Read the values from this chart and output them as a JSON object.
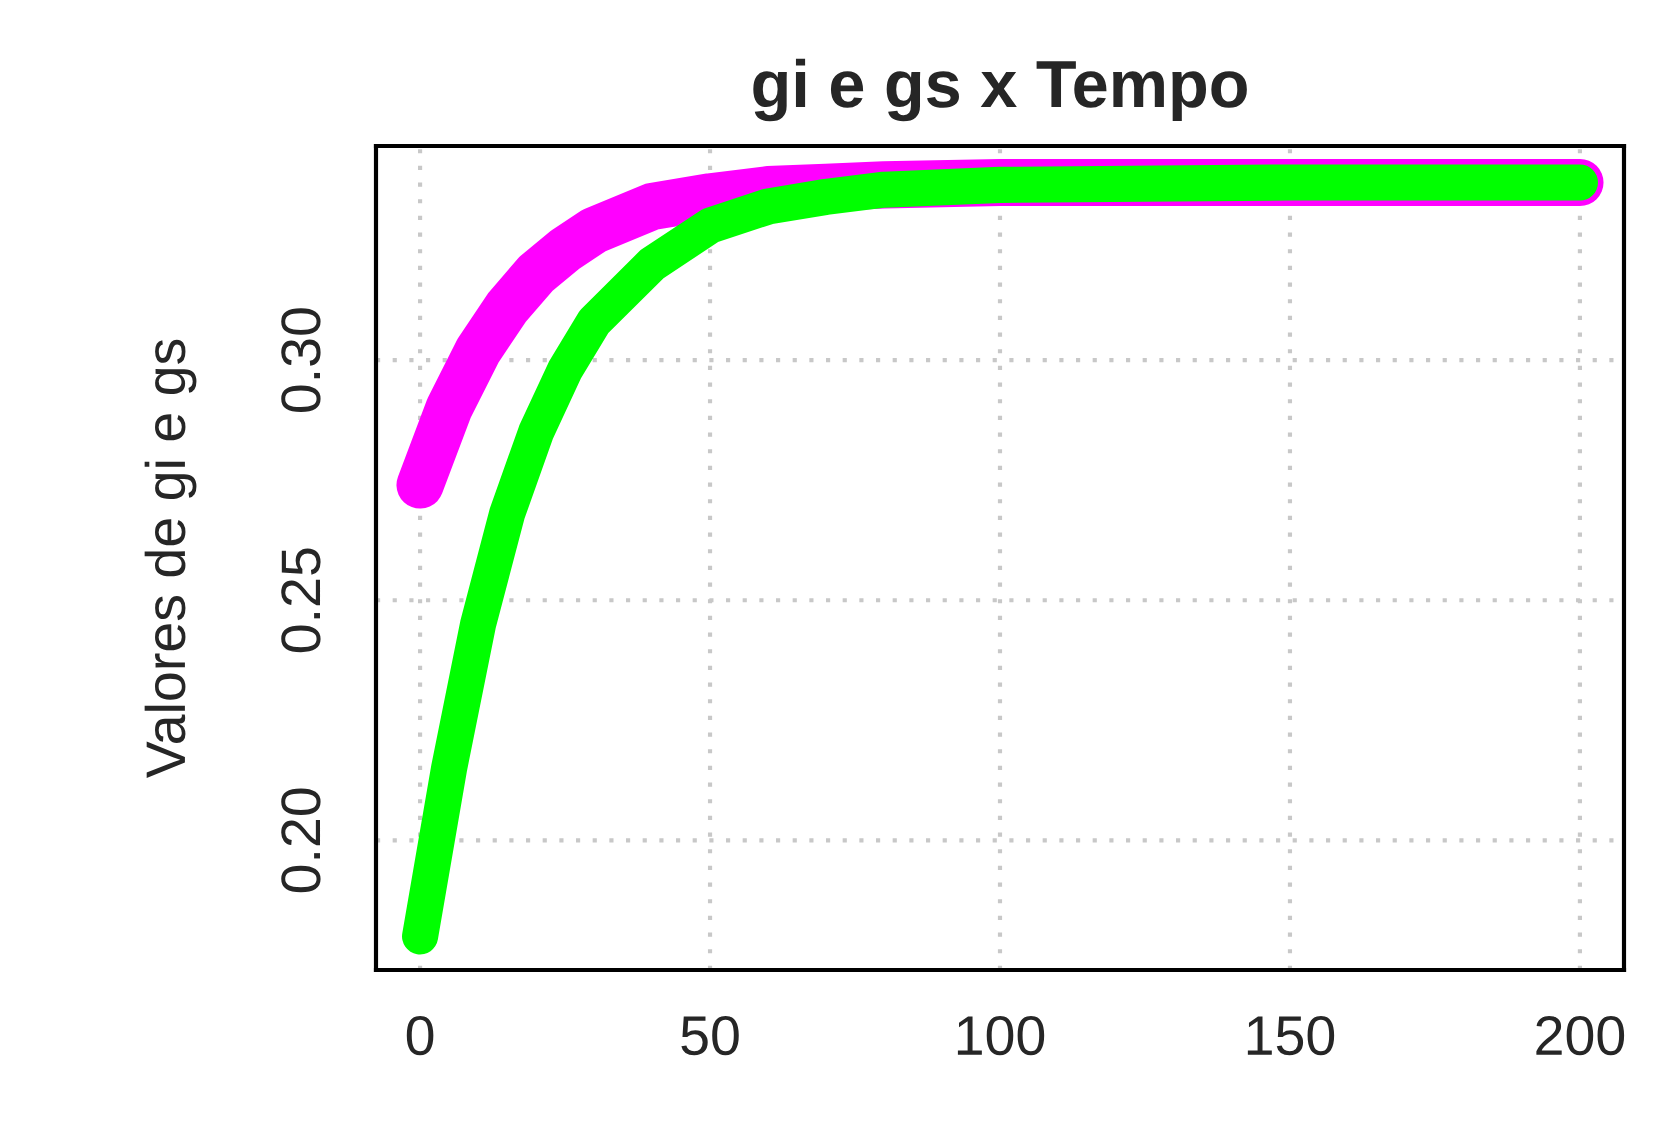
{
  "chart_data": {
    "type": "line",
    "title": "gi e gs x Tempo",
    "ylabel": "Valores de gi e gs",
    "x": [
      0,
      5,
      10,
      15,
      20,
      25,
      30,
      40,
      50,
      60,
      70,
      80,
      100,
      150,
      200
    ],
    "series": [
      {
        "color": "#ff00ff",
        "values": [
          0.274,
          0.29,
          0.302,
          0.311,
          0.318,
          0.323,
          0.327,
          0.332,
          0.334,
          0.3355,
          0.336,
          0.3365,
          0.337,
          0.337,
          0.337
        ]
      },
      {
        "color": "#00ff00",
        "values": [
          0.18,
          0.215,
          0.245,
          0.268,
          0.285,
          0.298,
          0.308,
          0.32,
          0.328,
          0.332,
          0.334,
          0.3355,
          0.3365,
          0.337,
          0.337
        ]
      }
    ],
    "xlim": [
      -7.6,
      207.6
    ],
    "ylim": [
      0.173,
      0.3446
    ],
    "xticks": [
      0,
      50,
      100,
      150,
      200
    ],
    "yticks": [
      {
        "value": 0.2,
        "label": "0.20"
      },
      {
        "value": 0.25,
        "label": "0.25"
      },
      {
        "value": 0.3,
        "label": "0.30"
      }
    ],
    "grid": true,
    "line_style": "solid"
  }
}
